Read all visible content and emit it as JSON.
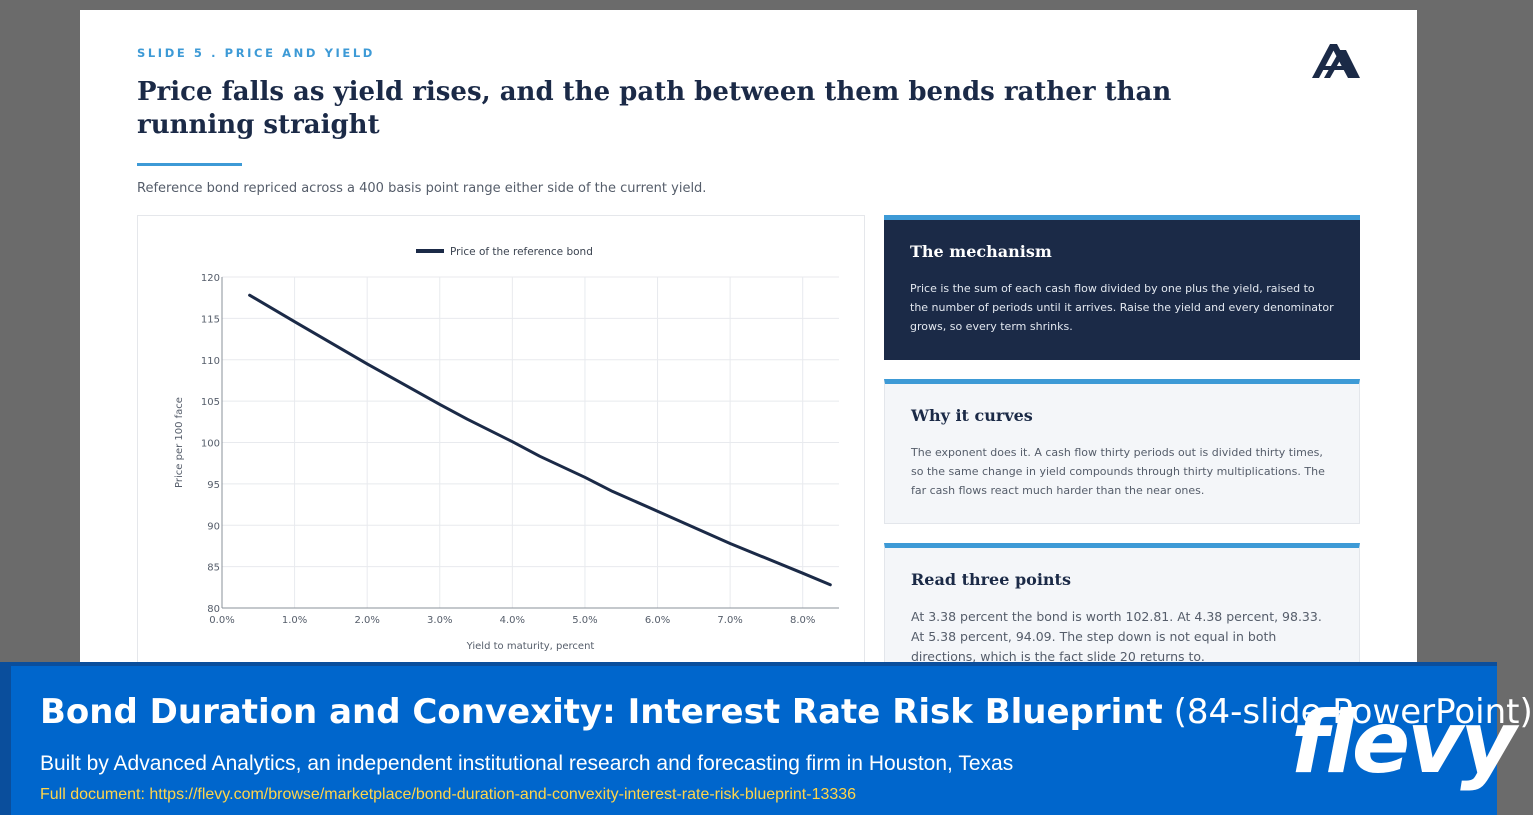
{
  "slide": {
    "kicker": "SLIDE 5 . PRICE AND YIELD",
    "headline": "Price falls as yield rises, and the path between them bends rather than running straight",
    "subtitle": "Reference bond repriced across a 400 basis point range either side of the current yield."
  },
  "cards": [
    {
      "title": "The mechanism",
      "body": "Price is the sum of each cash flow divided by one plus the yield, raised to the number of periods until it arrives. Raise the yield and every denominator grows, so every term shrinks."
    },
    {
      "title": "Why it curves",
      "body": "The exponent does it. A cash flow thirty periods out is divided thirty times, so the same change in yield compounds through thirty multiplications. The far cash flows react much harder than the near ones."
    },
    {
      "title": "Read three points",
      "body": "At 3.38 percent the bond is worth 102.81. At 4.38 percent, 98.33. At 5.38 percent, 94.09. The step down is not equal in both directions, which is the fact slide 20 returns to."
    }
  ],
  "chart_data": {
    "type": "line",
    "xlabel": "Yield to maturity, percent",
    "ylabel": "Price per 100 face",
    "xlim": [
      0,
      8.5
    ],
    "ylim": [
      80,
      120
    ],
    "x_ticks": [
      0,
      1,
      2,
      3,
      4,
      5,
      6,
      7,
      8
    ],
    "x_tick_labels": [
      "0.0%",
      "1.0%",
      "2.0%",
      "3.0%",
      "4.0%",
      "5.0%",
      "6.0%",
      "7.0%",
      "8.0%"
    ],
    "y_ticks": [
      80,
      85,
      90,
      95,
      100,
      105,
      110,
      115,
      120
    ],
    "y_tick_labels": [
      "80",
      "85",
      "90",
      "95",
      "100",
      "105",
      "110",
      "115",
      "120"
    ],
    "grid": true,
    "legend_position": "top-center",
    "series": [
      {
        "name": "Price of the reference bond",
        "color": "#1b2a47",
        "x": [
          0.38,
          1.0,
          2.0,
          3.0,
          3.38,
          4.0,
          4.38,
          5.0,
          5.38,
          6.0,
          7.0,
          8.0,
          8.38
        ],
        "y": [
          117.8,
          114.6,
          109.5,
          104.6,
          102.81,
          100.1,
          98.33,
          95.8,
          94.09,
          91.7,
          87.8,
          84.2,
          82.8
        ]
      }
    ]
  },
  "banner": {
    "title_bold": "Bond Duration and Convexity: Interest Rate Risk Blueprint",
    "title_light": "(84-slide PowerPoint)",
    "subtitle": "Built by Advanced Analytics, an independent institutional research and forecasting firm in Houston, Texas",
    "url": "Full document: https://flevy.com/browse/marketplace/bond-duration-and-convexity-interest-rate-risk-blueprint-13336",
    "brand": "flevy"
  }
}
